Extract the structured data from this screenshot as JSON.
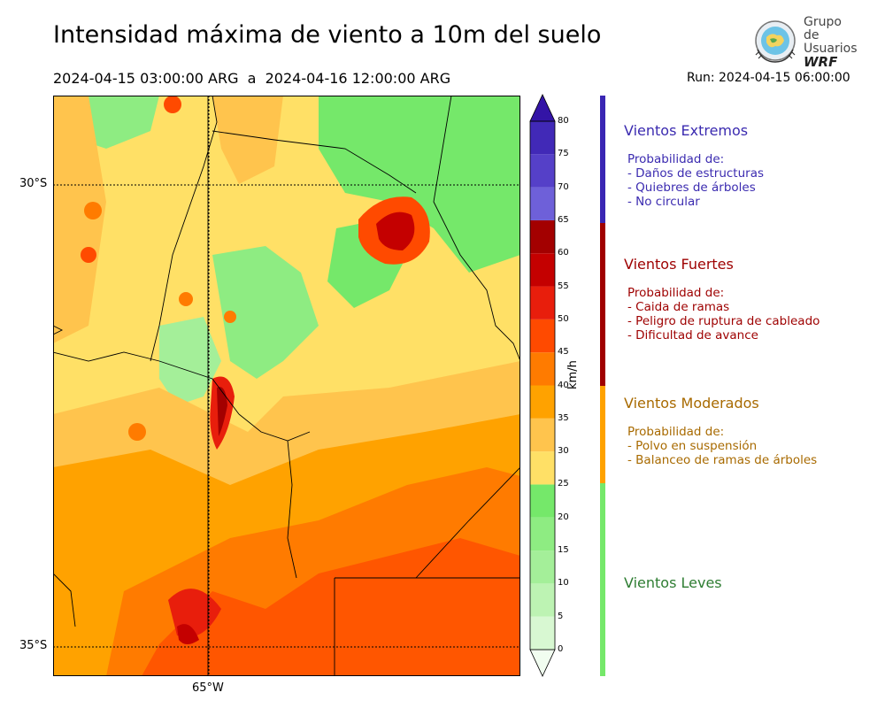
{
  "header": {
    "title": "Intensidad máxima de viento a 10m del suelo",
    "period": "2024-04-15 03:00:00 ARG  a  2024-04-16 12:00:00 ARG",
    "run": "Run: 2024-04-15 06:00:00"
  },
  "logo": {
    "line1": "Grupo de",
    "line2": "Usuarios",
    "line3": "WRF"
  },
  "map": {
    "lat_labels": [
      "30°S",
      "35°S"
    ],
    "lon_labels": [
      "65°W"
    ]
  },
  "colorbar": {
    "unit": "km/h",
    "ticks": [
      "0",
      "5",
      "10",
      "15",
      "20",
      "25",
      "30",
      "35",
      "40",
      "45",
      "50",
      "55",
      "60",
      "65",
      "70",
      "75",
      "80"
    ],
    "colors": [
      "#f1fdf0",
      "#d8f8d2",
      "#bdf3b3",
      "#a4ef99",
      "#8eec82",
      "#75e86a",
      "#ffe066",
      "#ffc44d",
      "#ffa200",
      "#ff7b00",
      "#ff4a00",
      "#e81e0c",
      "#c40000",
      "#a30000",
      "#6e60d9",
      "#5540c8",
      "#4129b7",
      "#3314a6"
    ]
  },
  "categories": [
    {
      "title": "Vientos Extremos",
      "color": "#3b2bb0",
      "band_color": "#3a26b3",
      "lines": [
        "Probabilidad de:",
        "- Daños de estructuras",
        "- Quiebres de árboles",
        "- No circular"
      ]
    },
    {
      "title": "Vientos Fuertes",
      "color": "#9e0000",
      "band_color": "#a00000",
      "lines": [
        "Probabilidad de:",
        "- Caida de ramas",
        "- Peligro de ruptura de cableado",
        "- Dificultad de avance"
      ]
    },
    {
      "title": "Vientos Moderados",
      "color": "#a86a00",
      "band_color": "#ffa200",
      "lines": [
        "Probabilidad de:",
        "- Polvo en suspensión",
        "- Balanceo de ramas de árboles"
      ]
    },
    {
      "title": "Vientos Leves",
      "color": "#2e7d32",
      "band_color": "#75e86a",
      "lines": []
    }
  ]
}
